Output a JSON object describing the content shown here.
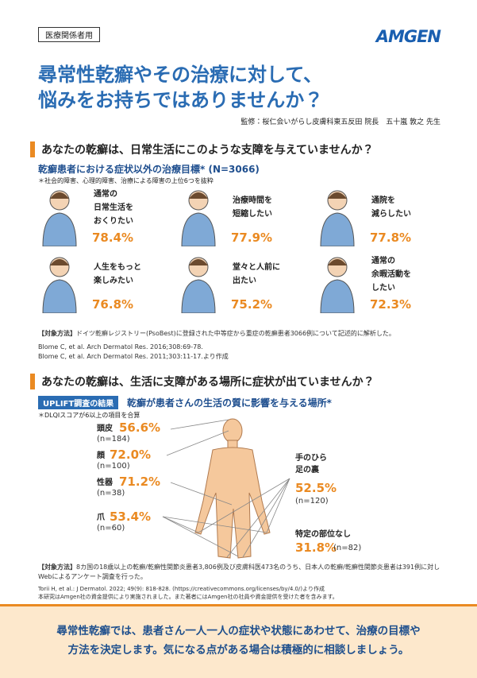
{
  "header": {
    "badge": "医療関係者用",
    "logo": "AMGEN",
    "title": [
      "尋常性乾癬やその治療に対して、",
      "悩みをお持ちではありませんか？"
    ],
    "supervisor": "監修：桜仁会いがらし皮膚科東五反田 院長　五十嵐 敦之 先生"
  },
  "section1": {
    "heading": "あなたの乾癬は、日常生活にこのような支障を与えていませんか？",
    "subtitle": "乾癬患者における症状以外の治療目標* (N=3066)",
    "note": "＊社会的障害、心理的障害、治療による障害の上位6つを抜粋",
    "items": [
      {
        "lines": [
          "通常の",
          "日常生活を",
          "おくりたい"
        ],
        "value": "78.4%"
      },
      {
        "lines": [
          "治療時間を",
          "短縮したい"
        ],
        "value": "77.9%"
      },
      {
        "lines": [
          "通院を",
          "減らしたい"
        ],
        "value": "77.8%"
      },
      {
        "lines": [
          "人生をもっと",
          "楽しみたい"
        ],
        "value": "76.8%"
      },
      {
        "lines": [
          "堂々と人前に",
          "出たい"
        ],
        "value": "75.2%"
      },
      {
        "lines": [
          "通常の",
          "余暇活動を",
          "したい"
        ],
        "value": "72.3%"
      }
    ],
    "method_label": "【対象方法】",
    "method": "ドイツ乾癬レジストリー(PsoBest)に登録された中等症から重症の乾癬患者3066例について記述的に解析した。",
    "refs": [
      "Blome C, et al. Arch Dermatol Res. 2016;308:69-78.",
      "Blome C, et al. Arch Dermatol Res. 2011;303:11-17.より作成"
    ]
  },
  "section2": {
    "heading": "あなたの乾癬は、生活に支障がある場所に症状が出ていませんか？",
    "badge": "UPLIFT調査の結果",
    "subtitle": "乾癬が患者さんの生活の質に影響を与える場所*",
    "note": "＊DLQIスコアが6以上の項目を合算",
    "parts": [
      {
        "name": "頭皮",
        "value": "56.6%",
        "n": "(n=184)"
      },
      {
        "name": "顔",
        "value": "72.0%",
        "n": "(n=100)"
      },
      {
        "name": "性器",
        "value": "71.2%",
        "n": "(n=38)"
      },
      {
        "name": "爪",
        "value": "53.4%",
        "n": "(n=60)"
      },
      {
        "name": "手のひら\n足の裏",
        "value": "52.5%",
        "n": "(n=120)"
      },
      {
        "name": "特定の部位なし",
        "value": "31.8%",
        "n": "(n=82)"
      }
    ],
    "method_label": "【対象方法】",
    "method": "8カ国の18歳以上の乾癬/乾癬性関節炎患者3,806例及び皮膚科医473名のうち、日本人の乾癬/乾癬性関節炎患者は391例に対しWebによるアンケート調査を行った。",
    "refs": [
      "Torii H, et al.: J Dermatol. 2022; 49(9): 818-828. (https://creativecommons.org/licenses/by/4.0/)より作成",
      "本研究はAmgen社の資金提供により実施されました。また著者にはAmgen社の社員や資金提供を受けた者を含みます。"
    ]
  },
  "footer": [
    "尋常性乾癬では、患者さん一人一人の症状や状態にあわせて、治療の目標や",
    "方法を決定します。気になる点がある場合は積極的に相談しましょう。"
  ]
}
